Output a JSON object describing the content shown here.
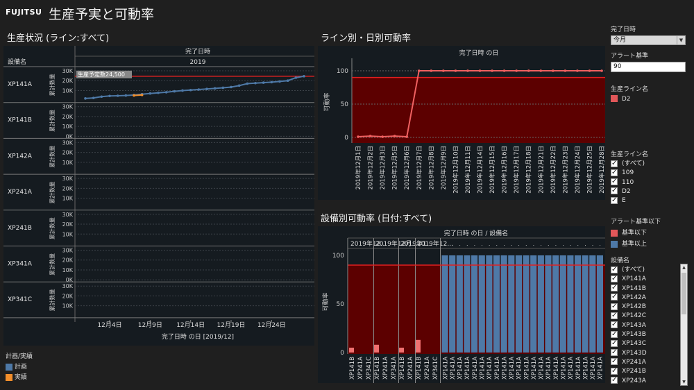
{
  "header": {
    "logo": "FUJITSU",
    "title": "生産予実と可動率"
  },
  "left": {
    "title": "生産状況 (ライン:すべて)",
    "col_header_top": "完了日時",
    "col_header_year": "2019",
    "row_header": "設備名",
    "measure_label": "累計数量",
    "ref_label": "生産予定数24,500",
    "x_title": "完了日時 の日 [2019/12]",
    "x_ticks": [
      "12月4日",
      "12月9日",
      "12月14日",
      "12月19日",
      "12月24日"
    ],
    "rows": [
      {
        "name": "XP141A",
        "ticks": [
          "30K",
          "20K",
          "10K"
        ]
      },
      {
        "name": "XP141B",
        "ticks": [
          "30K",
          "20K",
          "10K",
          "0K"
        ]
      },
      {
        "name": "XP142A",
        "ticks": [
          "30K",
          "20K",
          "10K"
        ]
      },
      {
        "name": "XP241A",
        "ticks": [
          "30K",
          "20K",
          "10K"
        ]
      },
      {
        "name": "XP241B",
        "ticks": [
          "30K",
          "20K",
          "10K"
        ]
      },
      {
        "name": "XP341A",
        "ticks": [
          "30K",
          "20K",
          "10K",
          "0K"
        ]
      },
      {
        "name": "XP341C",
        "ticks": [
          "30K",
          "20K",
          "10K"
        ]
      }
    ]
  },
  "legend_plan": {
    "title": "計画/実績",
    "items": [
      {
        "label": "計画",
        "color": "#4e79a7"
      },
      {
        "label": "実績",
        "color": "#f28e2b"
      }
    ]
  },
  "line_panel": {
    "title": "ライン別・日別可動率",
    "header": "完了日時 の日",
    "y_label": "可動率",
    "y_ticks": [
      "100",
      "50",
      "0"
    ],
    "dates": [
      "2019年12月1日",
      "2019年12月2日",
      "2019年12月3日",
      "2019年12月5日",
      "2019年12月6日",
      "2019年12月7日",
      "2019年12月8日",
      "2019年12月9日",
      "2019年12月10日",
      "2019年12月11日",
      "2019年12月14日",
      "2019年12月15日",
      "2019年12月16日",
      "2019年12月17日",
      "2019年12月18日",
      "2019年12月21日",
      "2019年12月22日",
      "2019年12月23日",
      "2019年12月24日",
      "2019年12月25日",
      "2019年12月28日"
    ]
  },
  "bar_panel": {
    "title": "設備別可動率 (日付:すべて)",
    "header": "完了日時 の日 / 設備名",
    "y_label": "可動率",
    "y_ticks": [
      "100",
      "50",
      "0"
    ],
    "groups": [
      {
        "label": "2019年12...",
        "items": [
          "XP141B",
          "XP241A",
          "XP341C"
        ]
      },
      {
        "label": "2019年12月...",
        "items": [
          "XP141B",
          "XP241A",
          "XP341A"
        ]
      },
      {
        "label": "2019年1...",
        "items": [
          "XP141B",
          "XP241A"
        ]
      },
      {
        "label": "2019年12...",
        "items": [
          "XP141B",
          "XP241A",
          "XP341C"
        ]
      }
    ],
    "repeat_label": "XP141A"
  },
  "filters": {
    "date_title": "完了日時",
    "date_value": "今月",
    "alert_title": "アラート基準",
    "alert_value": "90",
    "line_legend_title": "生産ライン名",
    "line_legend_item": "D2",
    "line_filter_title": "生産ライン名",
    "line_filter_items": [
      "(すべて)",
      "109",
      "110",
      "D2",
      "E"
    ],
    "alert_legend_title": "アラート基準以下",
    "alert_legend_items": [
      {
        "label": "基準以下",
        "color": "#e15759"
      },
      {
        "label": "基準以上",
        "color": "#4e79a7"
      }
    ],
    "equip_title": "設備名",
    "equip_items": [
      "(すべて)",
      "XP141A",
      "XP141B",
      "XP142A",
      "XP142B",
      "XP142C",
      "XP143A",
      "XP143B",
      "XP143C",
      "XP143D",
      "XP241A",
      "XP241B",
      "XP243A"
    ]
  },
  "chart_data": [
    {
      "type": "line",
      "title": "生産状況 (ライン:すべて)",
      "xlabel": "完了日時 の日 [2019/12]",
      "ylabel": "累計数量",
      "ylim": [
        0,
        30000
      ],
      "reference_line": {
        "label": "生産予定数24,500",
        "value": 24500
      },
      "series": [
        {
          "name": "計画",
          "x": [
            1,
            2,
            3,
            4,
            5,
            6,
            7,
            8,
            9,
            10,
            11,
            12,
            13,
            14,
            15,
            16,
            17,
            18,
            19,
            20,
            21,
            22,
            23,
            24,
            25,
            26,
            27,
            28
          ],
          "values": [
            2000,
            2500,
            3800,
            4500,
            4700,
            5000,
            5500,
            6300,
            7000,
            7700,
            8300,
            9200,
            10000,
            10500,
            11000,
            11600,
            12200,
            12800,
            13500,
            15000,
            17000,
            17500,
            18000,
            18500,
            19200,
            20000,
            23000,
            24500
          ]
        },
        {
          "name": "実績",
          "x": [
            7,
            8
          ],
          "values": [
            5000,
            5500
          ]
        }
      ]
    },
    {
      "type": "line",
      "title": "ライン別・日別可動率",
      "ylabel": "可動率",
      "ylim": [
        0,
        100
      ],
      "reference_line": {
        "value": 90
      },
      "categories": [
        "2019年12月1日",
        "2019年12月2日",
        "2019年12月3日",
        "2019年12月5日",
        "2019年12月6日",
        "2019年12月7日",
        "2019年12月8日",
        "2019年12月9日",
        "2019年12月10日",
        "2019年12月11日",
        "2019年12月14日",
        "2019年12月15日",
        "2019年12月16日",
        "2019年12月17日",
        "2019年12月18日",
        "2019年12月21日",
        "2019年12月22日",
        "2019年12月23日",
        "2019年12月24日",
        "2019年12月25日",
        "2019年12月28日"
      ],
      "series": [
        {
          "name": "D2",
          "values": [
            1,
            2,
            1,
            2,
            1,
            100,
            100,
            100,
            100,
            100,
            100,
            100,
            100,
            100,
            100,
            100,
            100,
            100,
            100,
            100,
            100
          ]
        }
      ]
    },
    {
      "type": "bar",
      "title": "設備別可動率 (日付:すべて)",
      "ylabel": "可動率",
      "ylim": [
        0,
        100
      ],
      "reference_line": {
        "value": 90
      },
      "categories": [
        "XP141B",
        "XP241A",
        "XP341C",
        "XP141B",
        "XP241A",
        "XP341A",
        "XP141B",
        "XP241A",
        "XP141B",
        "XP241A",
        "XP341C"
      ],
      "values": [
        5,
        0,
        0,
        8,
        0,
        0,
        5,
        0,
        13,
        0,
        0
      ],
      "extra_series": {
        "name": "基準以上",
        "label": "XP141A",
        "count": 22,
        "value": 100
      }
    }
  ]
}
